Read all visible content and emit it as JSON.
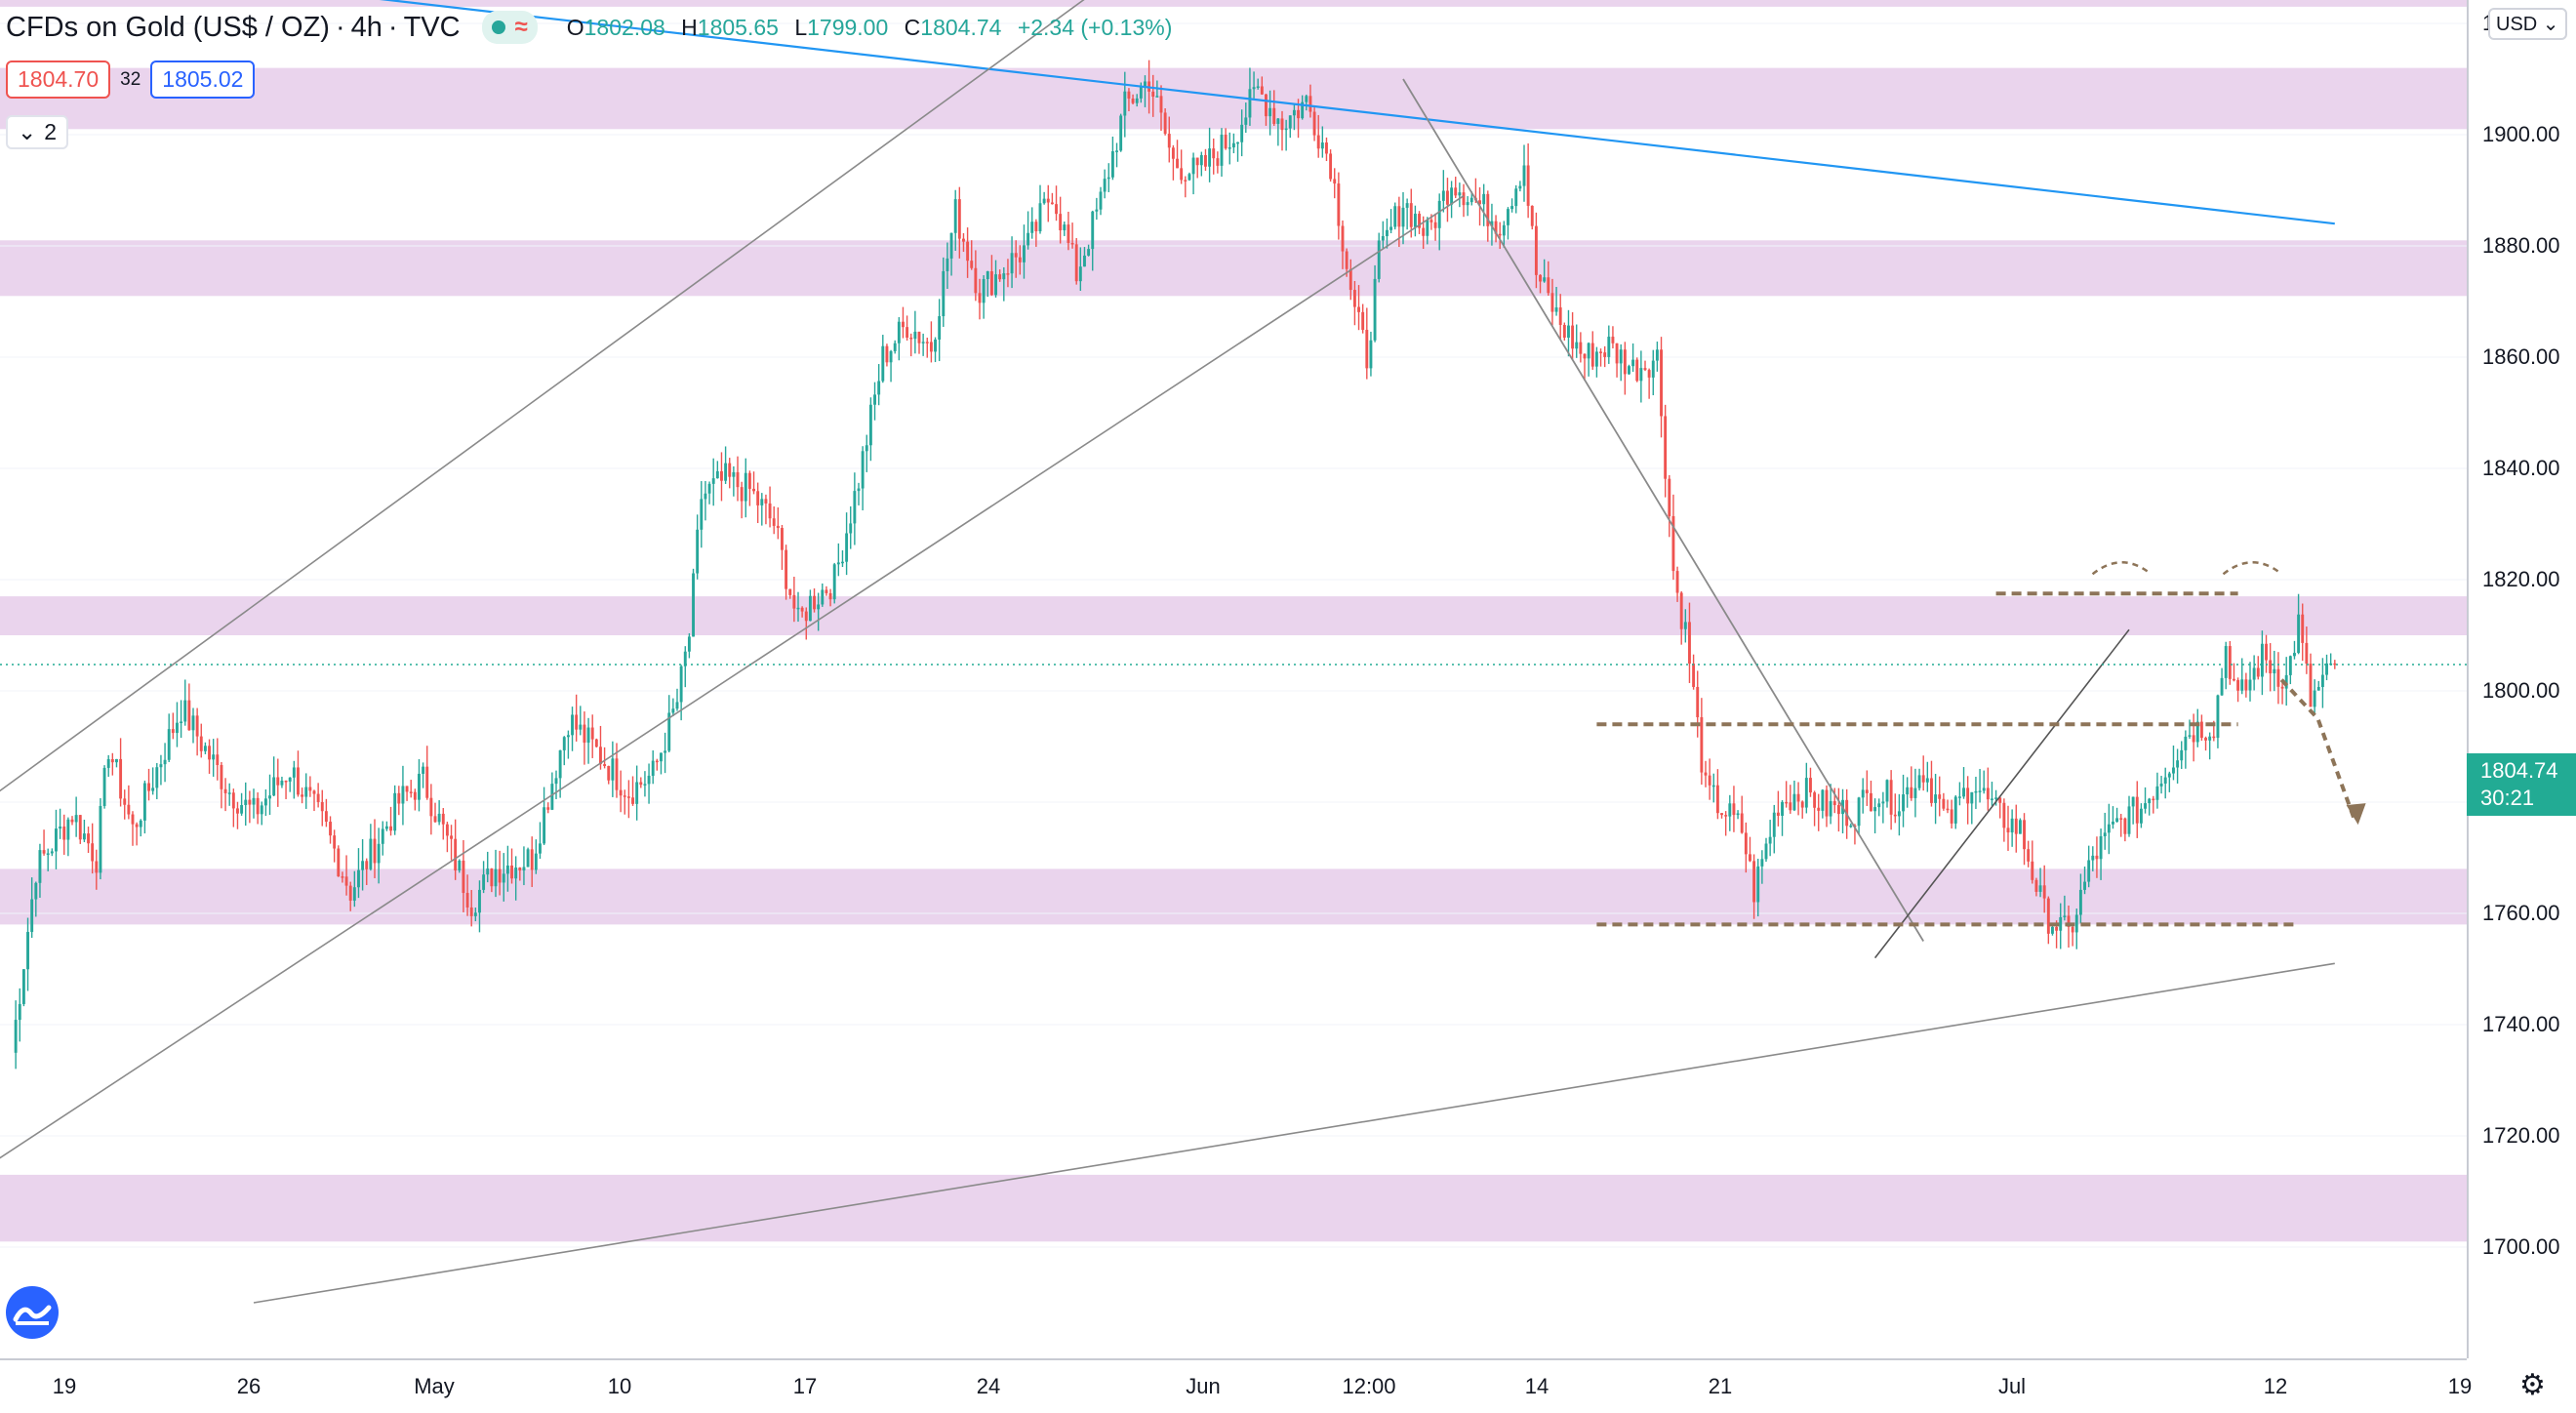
{
  "header": {
    "symbol": "CFDs on Gold (US$ / OZ)",
    "sep": "·",
    "interval": "4h",
    "source": "TVC",
    "ohlc": {
      "o_label": "O",
      "o": "1802.08",
      "h_label": "H",
      "h": "1805.65",
      "l_label": "L",
      "l": "1799.00",
      "c_label": "C",
      "c": "1804.74",
      "change": "+2.34 (+0.13%)"
    }
  },
  "trade": {
    "sell": "1804.70",
    "spread": "32",
    "buy": "1805.02"
  },
  "collapse": {
    "count": "2"
  },
  "currency": "USD",
  "last_price": {
    "value": "1804.74",
    "countdown": "30:21"
  },
  "colors": {
    "up": "#26a69a",
    "down": "#ef5350",
    "zone": "#e6cdea",
    "trendline": "#2196f3",
    "channel": "#8a8a8a",
    "projection": "#8d7458"
  },
  "chart_data": {
    "type": "candlestick",
    "title": "CFDs on Gold (US$ / OZ)",
    "interval": "4h",
    "ylim": [
      1698,
      1926
    ],
    "y_ticks": [
      1700,
      1720,
      1740,
      1760,
      1780,
      1800,
      1820,
      1840,
      1860,
      1880,
      1900,
      1920
    ],
    "x_ticks": [
      "19",
      "26",
      "May",
      "10",
      "17",
      "24",
      "Jun",
      "12:00",
      "14",
      "21",
      "Jul",
      "12",
      "19"
    ],
    "support_resistance_zones": [
      [
        1923,
        1930
      ],
      [
        1901,
        1912
      ],
      [
        1871,
        1881
      ],
      [
        1810,
        1817
      ],
      [
        1758,
        1768
      ],
      [
        1701,
        1713
      ]
    ],
    "keypoints": [
      {
        "d": 0,
        "p": 1735
      },
      {
        "d": 1,
        "p": 1768
      },
      {
        "d": 2.5,
        "p": 1778
      },
      {
        "d": 3.5,
        "p": 1770
      },
      {
        "d": 4,
        "p": 1790
      },
      {
        "d": 5,
        "p": 1775
      },
      {
        "d": 7,
        "p": 1797
      },
      {
        "d": 9,
        "p": 1782
      },
      {
        "d": 10,
        "p": 1778
      },
      {
        "d": 11.5,
        "p": 1786
      },
      {
        "d": 13,
        "p": 1775
      },
      {
        "d": 14,
        "p": 1764
      },
      {
        "d": 16,
        "p": 1780
      },
      {
        "d": 17,
        "p": 1784
      },
      {
        "d": 19,
        "p": 1762
      },
      {
        "d": 20,
        "p": 1768
      },
      {
        "d": 21.5,
        "p": 1770
      },
      {
        "d": 23,
        "p": 1795
      },
      {
        "d": 24,
        "p": 1790
      },
      {
        "d": 25.5,
        "p": 1782
      },
      {
        "d": 26.5,
        "p": 1785
      },
      {
        "d": 27.5,
        "p": 1798
      },
      {
        "d": 28,
        "p": 1810
      },
      {
        "d": 28.5,
        "p": 1835
      },
      {
        "d": 29.5,
        "p": 1838
      },
      {
        "d": 30.5,
        "p": 1836
      },
      {
        "d": 31.5,
        "p": 1830
      },
      {
        "d": 32.5,
        "p": 1812
      },
      {
        "d": 33,
        "p": 1816
      },
      {
        "d": 34,
        "p": 1820
      },
      {
        "d": 35,
        "p": 1838
      },
      {
        "d": 36,
        "p": 1860
      },
      {
        "d": 37,
        "p": 1866
      },
      {
        "d": 38,
        "p": 1862
      },
      {
        "d": 39,
        "p": 1886
      },
      {
        "d": 40,
        "p": 1872
      },
      {
        "d": 41,
        "p": 1876
      },
      {
        "d": 42,
        "p": 1880
      },
      {
        "d": 43,
        "p": 1890
      },
      {
        "d": 44,
        "p": 1875
      },
      {
        "d": 45,
        "p": 1888
      },
      {
        "d": 46,
        "p": 1905
      },
      {
        "d": 47,
        "p": 1910
      },
      {
        "d": 48,
        "p": 1895
      },
      {
        "d": 49,
        "p": 1893
      },
      {
        "d": 50.5,
        "p": 1900
      },
      {
        "d": 51.5,
        "p": 1908
      },
      {
        "d": 52.5,
        "p": 1902
      },
      {
        "d": 53.5,
        "p": 1906
      },
      {
        "d": 54.5,
        "p": 1895
      },
      {
        "d": 55.5,
        "p": 1868
      },
      {
        "d": 56,
        "p": 1860
      },
      {
        "d": 56.5,
        "p": 1878
      },
      {
        "d": 57.5,
        "p": 1888
      },
      {
        "d": 58.5,
        "p": 1882
      },
      {
        "d": 59.5,
        "p": 1892
      },
      {
        "d": 60.5,
        "p": 1888
      },
      {
        "d": 61.5,
        "p": 1884
      },
      {
        "d": 62.5,
        "p": 1895
      },
      {
        "d": 63,
        "p": 1875
      },
      {
        "d": 64,
        "p": 1866
      },
      {
        "d": 65,
        "p": 1860
      },
      {
        "d": 66,
        "p": 1862
      },
      {
        "d": 67,
        "p": 1858
      },
      {
        "d": 68,
        "p": 1860
      },
      {
        "d": 68.7,
        "p": 1820
      },
      {
        "d": 69.2,
        "p": 1810
      },
      {
        "d": 70,
        "p": 1782
      },
      {
        "d": 71.5,
        "p": 1775
      },
      {
        "d": 72,
        "p": 1764
      },
      {
        "d": 73,
        "p": 1780
      },
      {
        "d": 74,
        "p": 1782
      },
      {
        "d": 75,
        "p": 1779
      },
      {
        "d": 76,
        "p": 1778
      },
      {
        "d": 77,
        "p": 1782
      },
      {
        "d": 78,
        "p": 1780
      },
      {
        "d": 79,
        "p": 1786
      },
      {
        "d": 80,
        "p": 1776
      },
      {
        "d": 81,
        "p": 1784
      },
      {
        "d": 82,
        "p": 1778
      },
      {
        "d": 83,
        "p": 1775
      },
      {
        "d": 84,
        "p": 1760
      },
      {
        "d": 85,
        "p": 1756
      },
      {
        "d": 86,
        "p": 1770
      },
      {
        "d": 87,
        "p": 1776
      },
      {
        "d": 88,
        "p": 1779
      },
      {
        "d": 89,
        "p": 1786
      },
      {
        "d": 90,
        "p": 1793
      },
      {
        "d": 91,
        "p": 1794
      },
      {
        "d": 91.5,
        "p": 1808
      },
      {
        "d": 92,
        "p": 1798
      },
      {
        "d": 93,
        "p": 1806
      },
      {
        "d": 94,
        "p": 1802
      },
      {
        "d": 94.5,
        "p": 1812
      },
      {
        "d": 95,
        "p": 1798
      },
      {
        "d": 96,
        "p": 1804.74
      }
    ],
    "drawings": {
      "trendline_blue": [
        [
          0,
          0.2,
          1932
        ],
        [
          96,
          0.2,
          1884
        ]
      ],
      "channel_upper": [
        [
          -0.5,
          1782
        ],
        [
          48,
          1936
        ]
      ],
      "channel_lower": [
        [
          -0.5,
          1716
        ],
        [
          60,
          1889
        ]
      ],
      "descending_line": [
        [
          57.5,
          1910
        ],
        [
          79,
          1755
        ]
      ],
      "long_support": [
        [
          10,
          1690
        ],
        [
          96,
          1751
        ]
      ],
      "small_rising": [
        [
          77,
          1752
        ],
        [
          87.5,
          1811
        ]
      ],
      "resistance_dashed": [
        [
          82,
          1817.5
        ],
        [
          92,
          1817.5
        ]
      ],
      "neckline_dashed": [
        [
          65.5,
          1794
        ],
        [
          92,
          1794
        ]
      ],
      "support_dashed": [
        [
          65.5,
          1758
        ],
        [
          94.5,
          1758
        ]
      ]
    }
  }
}
